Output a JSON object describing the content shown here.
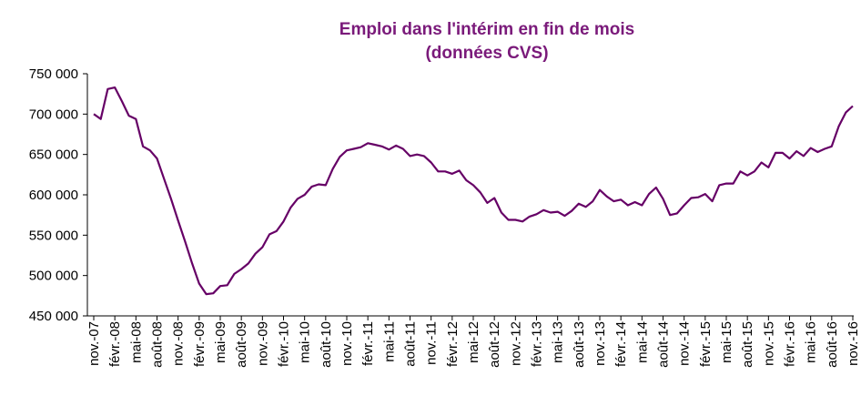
{
  "chart_data": {
    "type": "line",
    "title": "Emploi dans l'intérim en fin de mois",
    "subtitle": "(données CVS)",
    "categories": [
      "nov.-07",
      null,
      null,
      "févr.-08",
      null,
      null,
      "mai-08",
      null,
      null,
      "août-08",
      null,
      null,
      "nov.-08",
      null,
      null,
      "févr.-09",
      null,
      null,
      "mai-09",
      null,
      null,
      "août-09",
      null,
      null,
      "nov.-09",
      null,
      null,
      "févr.-10",
      null,
      null,
      "mai-10",
      null,
      null,
      "août-10",
      null,
      null,
      "nov.-10",
      null,
      null,
      "févr.-11",
      null,
      null,
      "mai-11",
      null,
      null,
      "août-11",
      null,
      null,
      "nov.-11",
      null,
      null,
      "févr.-12",
      null,
      null,
      "mai-12",
      null,
      null,
      "août-12",
      null,
      null,
      "nov.-12",
      null,
      null,
      "févr.-13",
      null,
      null,
      "mai-13",
      null,
      null,
      "août-13",
      null,
      null,
      "nov.-13",
      null,
      null,
      "févr.-14",
      null,
      null,
      "mai-14",
      null,
      null,
      "août-14",
      null,
      null,
      "nov.-14",
      null,
      null,
      "févr.-15",
      null,
      null,
      "mai-15",
      null,
      null,
      "août-15",
      null,
      null,
      "nov.-15",
      null,
      null,
      "févr.-16",
      null,
      null,
      "mai-16",
      null,
      null,
      "août-16",
      null,
      null,
      "nov.-16"
    ],
    "series": [
      {
        "color": "#660066",
        "values": [
          700000,
          694000,
          731000,
          733000,
          716000,
          698000,
          694000,
          660000,
          655000,
          645000,
          620000,
          595000,
          568000,
          542000,
          515000,
          490000,
          477000,
          478000,
          487000,
          488000,
          502000,
          508000,
          515000,
          527000,
          535000,
          551000,
          555000,
          567000,
          584000,
          595000,
          600000,
          610000,
          613000,
          612000,
          632000,
          647000,
          655000,
          657000,
          659000,
          664000,
          662000,
          660000,
          656000,
          661000,
          657000,
          648000,
          650000,
          648000,
          640000,
          629000,
          629000,
          626000,
          630000,
          618000,
          612000,
          603000,
          590000,
          596000,
          578000,
          569000,
          569000,
          567000,
          573000,
          576000,
          581000,
          578000,
          579000,
          574000,
          580000,
          589000,
          585000,
          592000,
          606000,
          598000,
          592000,
          594000,
          587000,
          591000,
          587000,
          601000,
          609000,
          595000,
          575000,
          577000,
          587000,
          596000,
          597000,
          601000,
          592000,
          612000,
          614000,
          614000,
          629000,
          624000,
          629000,
          640000,
          634000,
          652000,
          652000,
          645000,
          654000,
          648000,
          658000,
          653000,
          657000,
          660000,
          685000,
          702000,
          710000
        ]
      }
    ],
    "ylim": [
      450000,
      750000
    ],
    "yticks": [
      {
        "value": 450000,
        "label": "450 000"
      },
      {
        "value": 500000,
        "label": "500 000"
      },
      {
        "value": 550000,
        "label": "550 000"
      },
      {
        "value": 600000,
        "label": "600 000"
      },
      {
        "value": 650000,
        "label": "650 000"
      },
      {
        "value": 700000,
        "label": "700 000"
      },
      {
        "value": 750000,
        "label": "750 000"
      }
    ],
    "grid": false
  }
}
